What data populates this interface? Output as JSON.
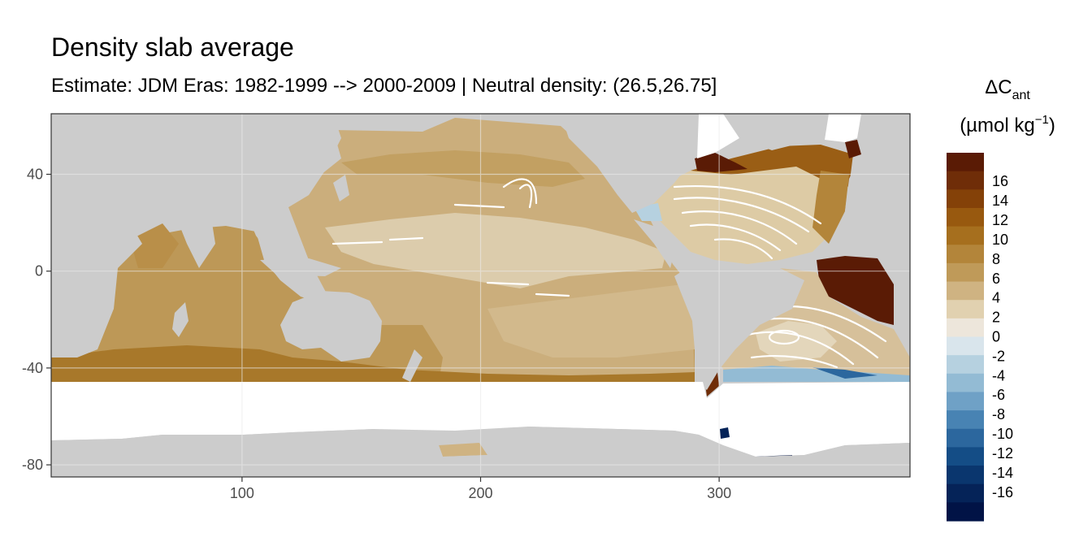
{
  "chart_data": {
    "type": "heatmap",
    "title": "Density slab average",
    "subtitle": "Estimate: JDM Eras: 1982-1999 --> 2000-2009 | Neutral density: (26.5,26.75]",
    "xlabel": "",
    "ylabel": "",
    "xlim": [
      20,
      380
    ],
    "ylim": [
      -85,
      65
    ],
    "x_ticks": [
      100,
      200,
      300
    ],
    "y_ticks": [
      40,
      0,
      -40,
      -80
    ],
    "grid": true,
    "legend": {
      "title_main": "ΔC",
      "title_sub": "ant",
      "units_open": "(µmol kg",
      "units_sup": "−1",
      "units_close": ")",
      "placement": "right",
      "breaks": [
        18,
        16,
        14,
        12,
        10,
        8,
        6,
        4,
        2,
        0,
        -2,
        -4,
        -6,
        -8,
        -10,
        -12,
        -14,
        -16,
        -18
      ],
      "labels": [
        "16",
        "14",
        "12",
        "10",
        "8",
        "6",
        "4",
        "2",
        "0",
        "-2",
        "-4",
        "-6",
        "-8",
        "-10",
        "-12",
        "-14",
        "-16"
      ],
      "colors": [
        "#5a1b05",
        "#6f2d08",
        "#844108",
        "#98590f",
        "#a66f1e",
        "#b3853a",
        "#bf9a59",
        "#cfb382",
        "#e1d1b0",
        "#ede6db",
        "#d9e5ec",
        "#b6d1e0",
        "#93bbd4",
        "#6fa1c6",
        "#4883b3",
        "#2c679e",
        "#144d86",
        "#0a366e",
        "#052358",
        "#011346"
      ]
    },
    "colors": {
      "land": "#cccccc",
      "no_data": "#ffffff"
    }
  }
}
